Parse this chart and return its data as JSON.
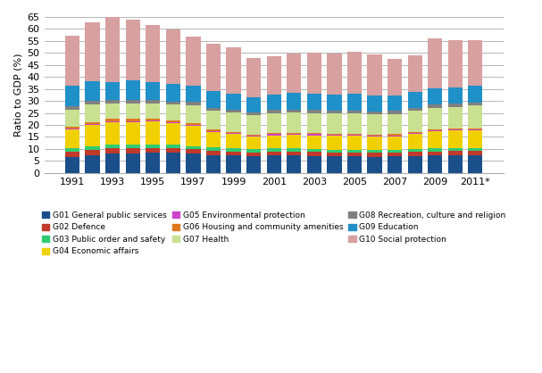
{
  "years": [
    1991,
    1992,
    1993,
    1994,
    1995,
    1996,
    1997,
    1998,
    1999,
    2000,
    2001,
    2002,
    2003,
    2004,
    2005,
    2006,
    2007,
    2008,
    2009,
    2010,
    2011
  ],
  "labels": [
    "G01 General public services",
    "G02 Defence",
    "G03 Public order and safety",
    "G04 Economic affairs",
    "G05 Environmental protection",
    "G06 Housing and community amenities",
    "G07 Health",
    "G08 Recreation, culture and religion",
    "G09 Education",
    "G10 Social protection"
  ],
  "colors": [
    "#1a4f8a",
    "#c0392b",
    "#2ecc71",
    "#f0d000",
    "#cc44cc",
    "#e07820",
    "#c8e090",
    "#808080",
    "#2090c8",
    "#d8a0a0"
  ],
  "G01": [
    6.5,
    7.2,
    8.0,
    8.0,
    8.3,
    8.3,
    8.0,
    7.5,
    7.2,
    7.0,
    7.2,
    7.2,
    7.0,
    6.8,
    6.8,
    6.7,
    6.8,
    7.0,
    7.2,
    7.5,
    7.5
  ],
  "G02": [
    2.2,
    2.2,
    2.2,
    2.2,
    2.0,
    2.0,
    1.8,
    1.8,
    1.8,
    1.6,
    1.8,
    1.8,
    1.7,
    1.7,
    1.7,
    1.7,
    1.7,
    1.8,
    1.8,
    1.7,
    1.7
  ],
  "G03": [
    1.5,
    1.5,
    1.5,
    1.5,
    1.5,
    1.4,
    1.3,
    1.3,
    1.3,
    1.2,
    1.2,
    1.2,
    1.2,
    1.2,
    1.2,
    1.2,
    1.2,
    1.3,
    1.3,
    1.3,
    1.3
  ],
  "G04": [
    8.0,
    9.0,
    9.5,
    9.5,
    9.5,
    9.0,
    8.5,
    6.5,
    6.0,
    5.5,
    5.5,
    5.8,
    5.8,
    5.8,
    5.8,
    5.5,
    5.5,
    6.0,
    7.0,
    7.2,
    7.2
  ],
  "G05": [
    0.4,
    0.4,
    0.4,
    0.4,
    0.4,
    0.4,
    0.4,
    0.4,
    0.4,
    0.3,
    0.4,
    0.4,
    0.4,
    0.4,
    0.4,
    0.4,
    0.4,
    0.4,
    0.4,
    0.4,
    0.4
  ],
  "G06": [
    0.8,
    0.8,
    0.9,
    0.9,
    0.8,
    0.8,
    0.7,
    0.5,
    0.5,
    0.4,
    0.4,
    0.4,
    0.4,
    0.4,
    0.5,
    0.5,
    0.5,
    0.5,
    0.5,
    0.5,
    0.5
  ],
  "G07": [
    7.0,
    7.5,
    6.5,
    6.5,
    6.5,
    6.5,
    7.5,
    8.0,
    8.0,
    8.0,
    8.5,
    8.5,
    8.5,
    8.5,
    8.5,
    8.5,
    8.5,
    9.0,
    9.0,
    9.0,
    9.5
  ],
  "G08": [
    1.5,
    1.5,
    1.5,
    1.5,
    1.5,
    1.3,
    1.3,
    1.2,
    1.2,
    1.1,
    1.2,
    1.2,
    1.2,
    1.2,
    1.2,
    1.2,
    1.2,
    1.2,
    1.2,
    1.2,
    1.2
  ],
  "G09": [
    8.3,
    8.0,
    7.5,
    8.0,
    7.5,
    7.5,
    7.0,
    7.0,
    6.5,
    6.5,
    6.5,
    6.8,
    6.8,
    6.8,
    6.8,
    6.5,
    6.5,
    6.5,
    7.0,
    7.0,
    7.0
  ],
  "G10": [
    21.0,
    24.5,
    27.5,
    25.5,
    23.5,
    22.5,
    20.5,
    19.8,
    19.5,
    16.3,
    15.8,
    16.5,
    17.0,
    17.0,
    17.5,
    17.0,
    15.3,
    15.3,
    20.5,
    19.5,
    19.0
  ],
  "ylim": [
    0,
    65
  ],
  "ylabel": "Ratio to GDP (%)"
}
